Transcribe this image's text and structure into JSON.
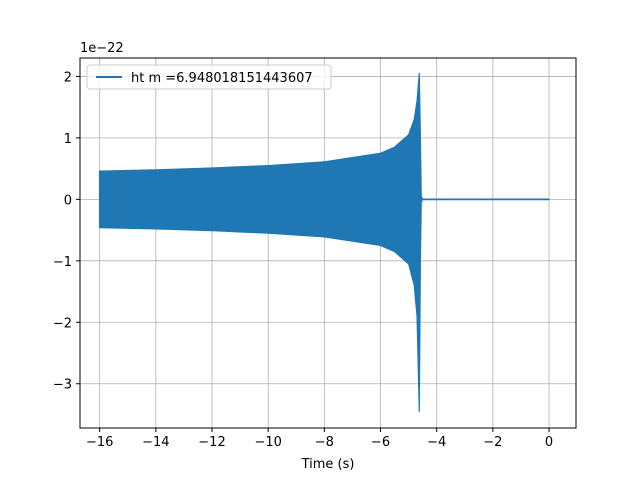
{
  "chart_data": {
    "type": "line",
    "title": "",
    "xlabel": "Time (s)",
    "ylabel": "",
    "y_offset_label": "1e−22",
    "xlim": [
      -16.7,
      0.96
    ],
    "ylim": [
      -3.72,
      2.3
    ],
    "grid": true,
    "legend_position": "top-left",
    "x_ticks": [
      -16,
      -14,
      -12,
      -10,
      -8,
      -6,
      -4,
      -2,
      0
    ],
    "x_tick_labels": [
      "−16",
      "−14",
      "−12",
      "−10",
      "−8",
      "−6",
      "−4",
      "−2",
      "0"
    ],
    "y_ticks": [
      -3,
      -2,
      -1,
      0,
      1,
      2
    ],
    "y_tick_labels": [
      "−3",
      "−2",
      "−1",
      "0",
      "1",
      "2"
    ],
    "series": [
      {
        "name": "ht m =6.948018151443607",
        "color": "#1f77b4",
        "envelope_upper": [
          [
            -16.0,
            0.46
          ],
          [
            -14.0,
            0.48
          ],
          [
            -12.0,
            0.51
          ],
          [
            -10.0,
            0.55
          ],
          [
            -8.0,
            0.61
          ],
          [
            -6.0,
            0.75
          ],
          [
            -5.5,
            0.85
          ],
          [
            -5.0,
            1.05
          ],
          [
            -4.8,
            1.3
          ],
          [
            -4.7,
            1.6
          ],
          [
            -4.62,
            2.05
          ],
          [
            -4.58,
            1.0
          ],
          [
            -4.55,
            0.05
          ],
          [
            -4.5,
            0.0
          ],
          [
            0.0,
            0.0
          ]
        ],
        "envelope_lower": [
          [
            -16.0,
            -0.46
          ],
          [
            -14.0,
            -0.48
          ],
          [
            -12.0,
            -0.51
          ],
          [
            -10.0,
            -0.55
          ],
          [
            -8.0,
            -0.61
          ],
          [
            -6.0,
            -0.75
          ],
          [
            -5.5,
            -0.85
          ],
          [
            -5.0,
            -1.05
          ],
          [
            -4.8,
            -1.4
          ],
          [
            -4.7,
            -1.9
          ],
          [
            -4.62,
            -3.45
          ],
          [
            -4.58,
            -1.0
          ],
          [
            -4.55,
            -0.05
          ],
          [
            -4.5,
            0.0
          ],
          [
            0.0,
            0.0
          ]
        ]
      }
    ]
  }
}
